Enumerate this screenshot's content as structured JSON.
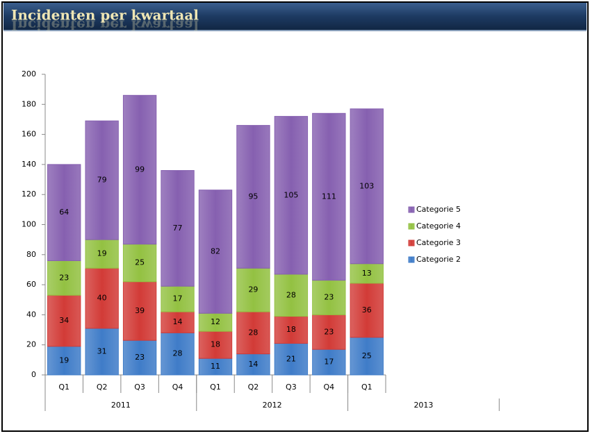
{
  "chart_data": {
    "type": "stacked_bar",
    "title": "Incidenten per kwartaal",
    "category_groups": [
      {
        "name": "2011",
        "categories": [
          "Q1",
          "Q2",
          "Q3",
          "Q4"
        ]
      },
      {
        "name": "2012",
        "categories": [
          "Q1",
          "Q2",
          "Q3",
          "Q4"
        ]
      },
      {
        "name": "2013",
        "categories": [
          "Q1"
        ]
      }
    ],
    "series": [
      {
        "name": "Categorie 2",
        "color": "#3f7cc8",
        "values": [
          19,
          31,
          23,
          28,
          11,
          14,
          21,
          17,
          25
        ]
      },
      {
        "name": "Categorie 3",
        "color": "#d23b37",
        "values": [
          34,
          40,
          39,
          14,
          18,
          28,
          18,
          23,
          36
        ]
      },
      {
        "name": "Categorie 4",
        "color": "#93c142",
        "values": [
          23,
          19,
          25,
          17,
          12,
          29,
          28,
          23,
          13
        ]
      },
      {
        "name": "Categorie 5",
        "color": "#8660b0",
        "values": [
          64,
          79,
          99,
          77,
          82,
          95,
          105,
          111,
          103
        ]
      }
    ],
    "ylim": [
      0,
      200
    ],
    "yticks": [
      0,
      20,
      40,
      60,
      80,
      100,
      120,
      140,
      160,
      180,
      200
    ],
    "grid": false,
    "legend": "right"
  }
}
